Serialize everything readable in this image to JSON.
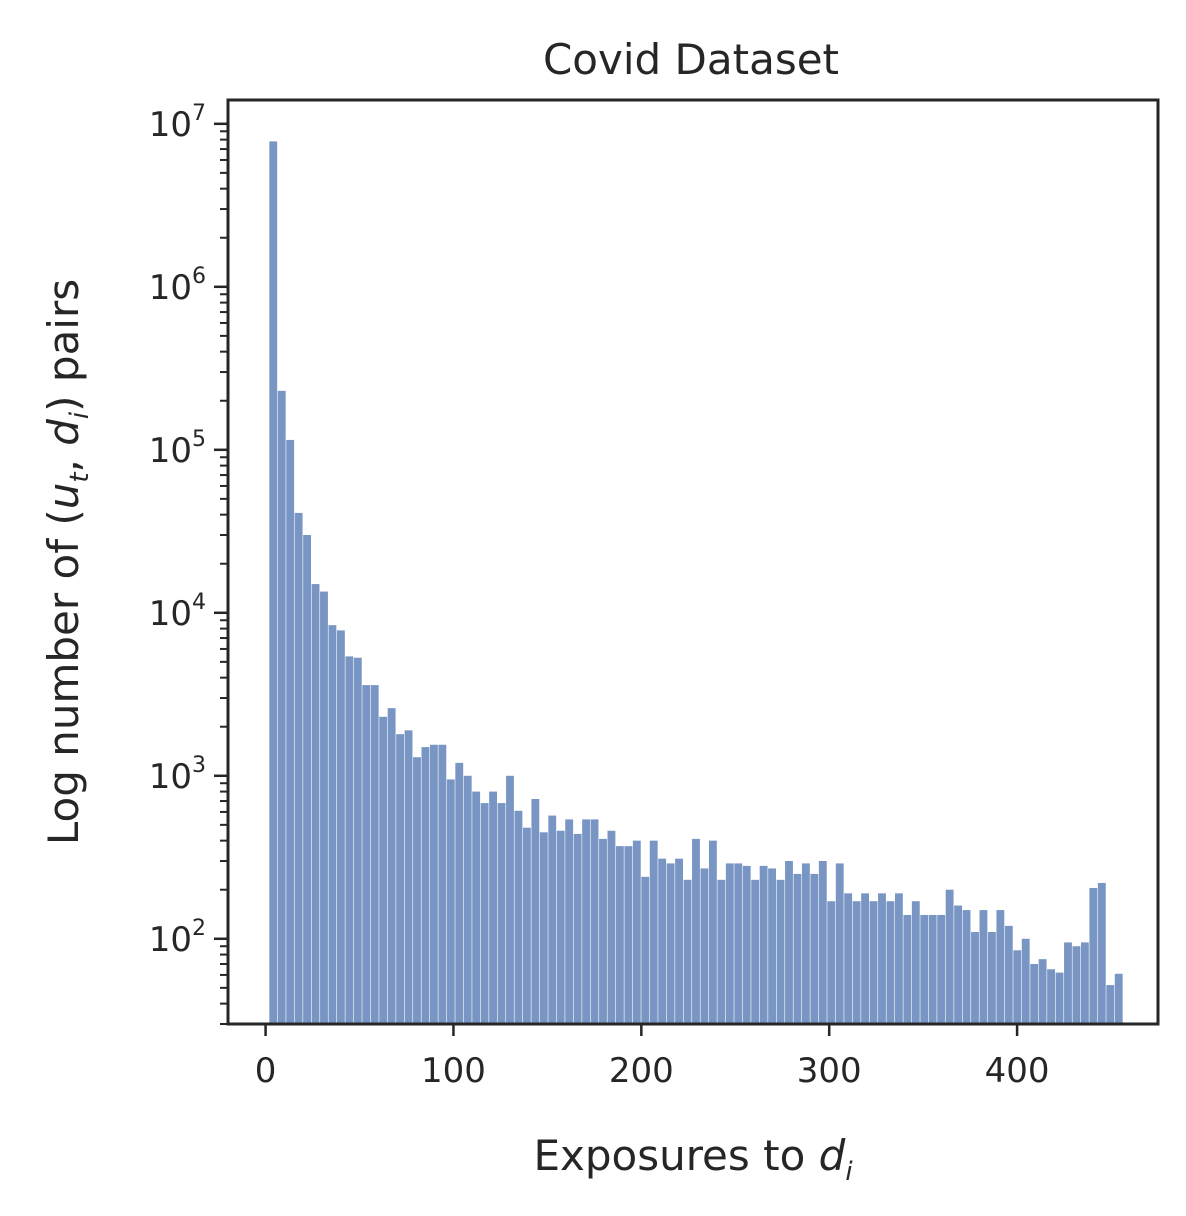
{
  "chart_data": {
    "type": "bar",
    "title": "Covid Dataset",
    "xlabel": {
      "prefix": "Exposures to ",
      "var": "d",
      "sub": "i"
    },
    "ylabel": {
      "prefix": "Log number of (",
      "var1": "u",
      "sub1": "t",
      "sep": ", ",
      "var2": "d",
      "sub2": "i",
      "suffix": ") pairs"
    },
    "xlim": [
      -20,
      475
    ],
    "ylim": [
      30,
      14000000
    ],
    "yscale": "log",
    "bin_width": 4.5,
    "bin_start": 2,
    "x_ticks": [
      {
        "value": 0,
        "label": "0"
      },
      {
        "value": 100,
        "label": "100"
      },
      {
        "value": 200,
        "label": "200"
      },
      {
        "value": 300,
        "label": "300"
      },
      {
        "value": 400,
        "label": "400"
      }
    ],
    "y_ticks": [
      {
        "value": 100,
        "base": "10",
        "exp": "2"
      },
      {
        "value": 1000,
        "base": "10",
        "exp": "3"
      },
      {
        "value": 10000,
        "base": "10",
        "exp": "4"
      },
      {
        "value": 100000,
        "base": "10",
        "exp": "5"
      },
      {
        "value": 1000000,
        "base": "10",
        "exp": "6"
      },
      {
        "value": 10000000,
        "base": "10",
        "exp": "7"
      }
    ],
    "grid": false,
    "legend": "none",
    "bar_color": "#7895c3",
    "values": [
      7800000,
      230000,
      115000,
      41000,
      30000,
      15000,
      13500,
      8400,
      7800,
      5400,
      5300,
      3600,
      3600,
      2300,
      2600,
      1800,
      1900,
      1300,
      1500,
      1550,
      1550,
      950,
      1200,
      1000,
      800,
      680,
      800,
      680,
      1000,
      610,
      480,
      720,
      450,
      570,
      460,
      540,
      440,
      540,
      540,
      410,
      460,
      370,
      370,
      400,
      240,
      400,
      310,
      290,
      310,
      230,
      410,
      270,
      400,
      230,
      290,
      290,
      280,
      230,
      280,
      270,
      230,
      300,
      250,
      290,
      250,
      300,
      170,
      290,
      190,
      170,
      190,
      170,
      190,
      170,
      190,
      140,
      170,
      140,
      140,
      140,
      200,
      160,
      150,
      110,
      150,
      110,
      150,
      120,
      85,
      100,
      70,
      75,
      65,
      62,
      95,
      90,
      95,
      205,
      220,
      52,
      61
    ]
  }
}
